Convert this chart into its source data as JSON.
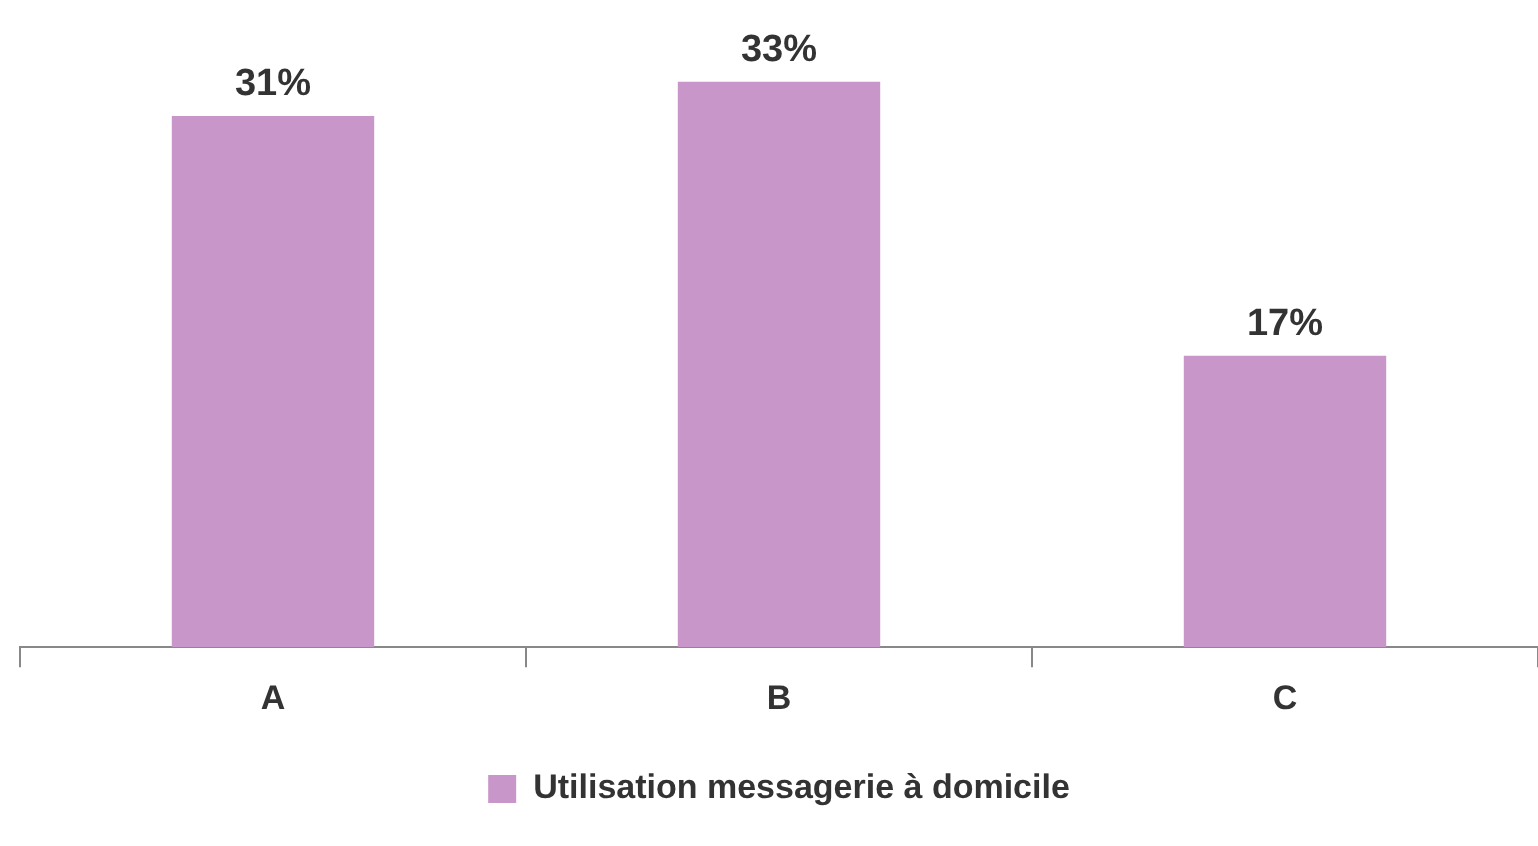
{
  "chart_data": {
    "type": "bar",
    "categories": [
      "A",
      "B",
      "C"
    ],
    "series": [
      {
        "name": "Utilisation messagerie à domicile",
        "color": "#c896c8",
        "values": [
          31,
          33,
          17
        ],
        "value_labels": [
          "31%",
          "33%",
          "17%"
        ]
      }
    ],
    "legend": "bottom"
  }
}
